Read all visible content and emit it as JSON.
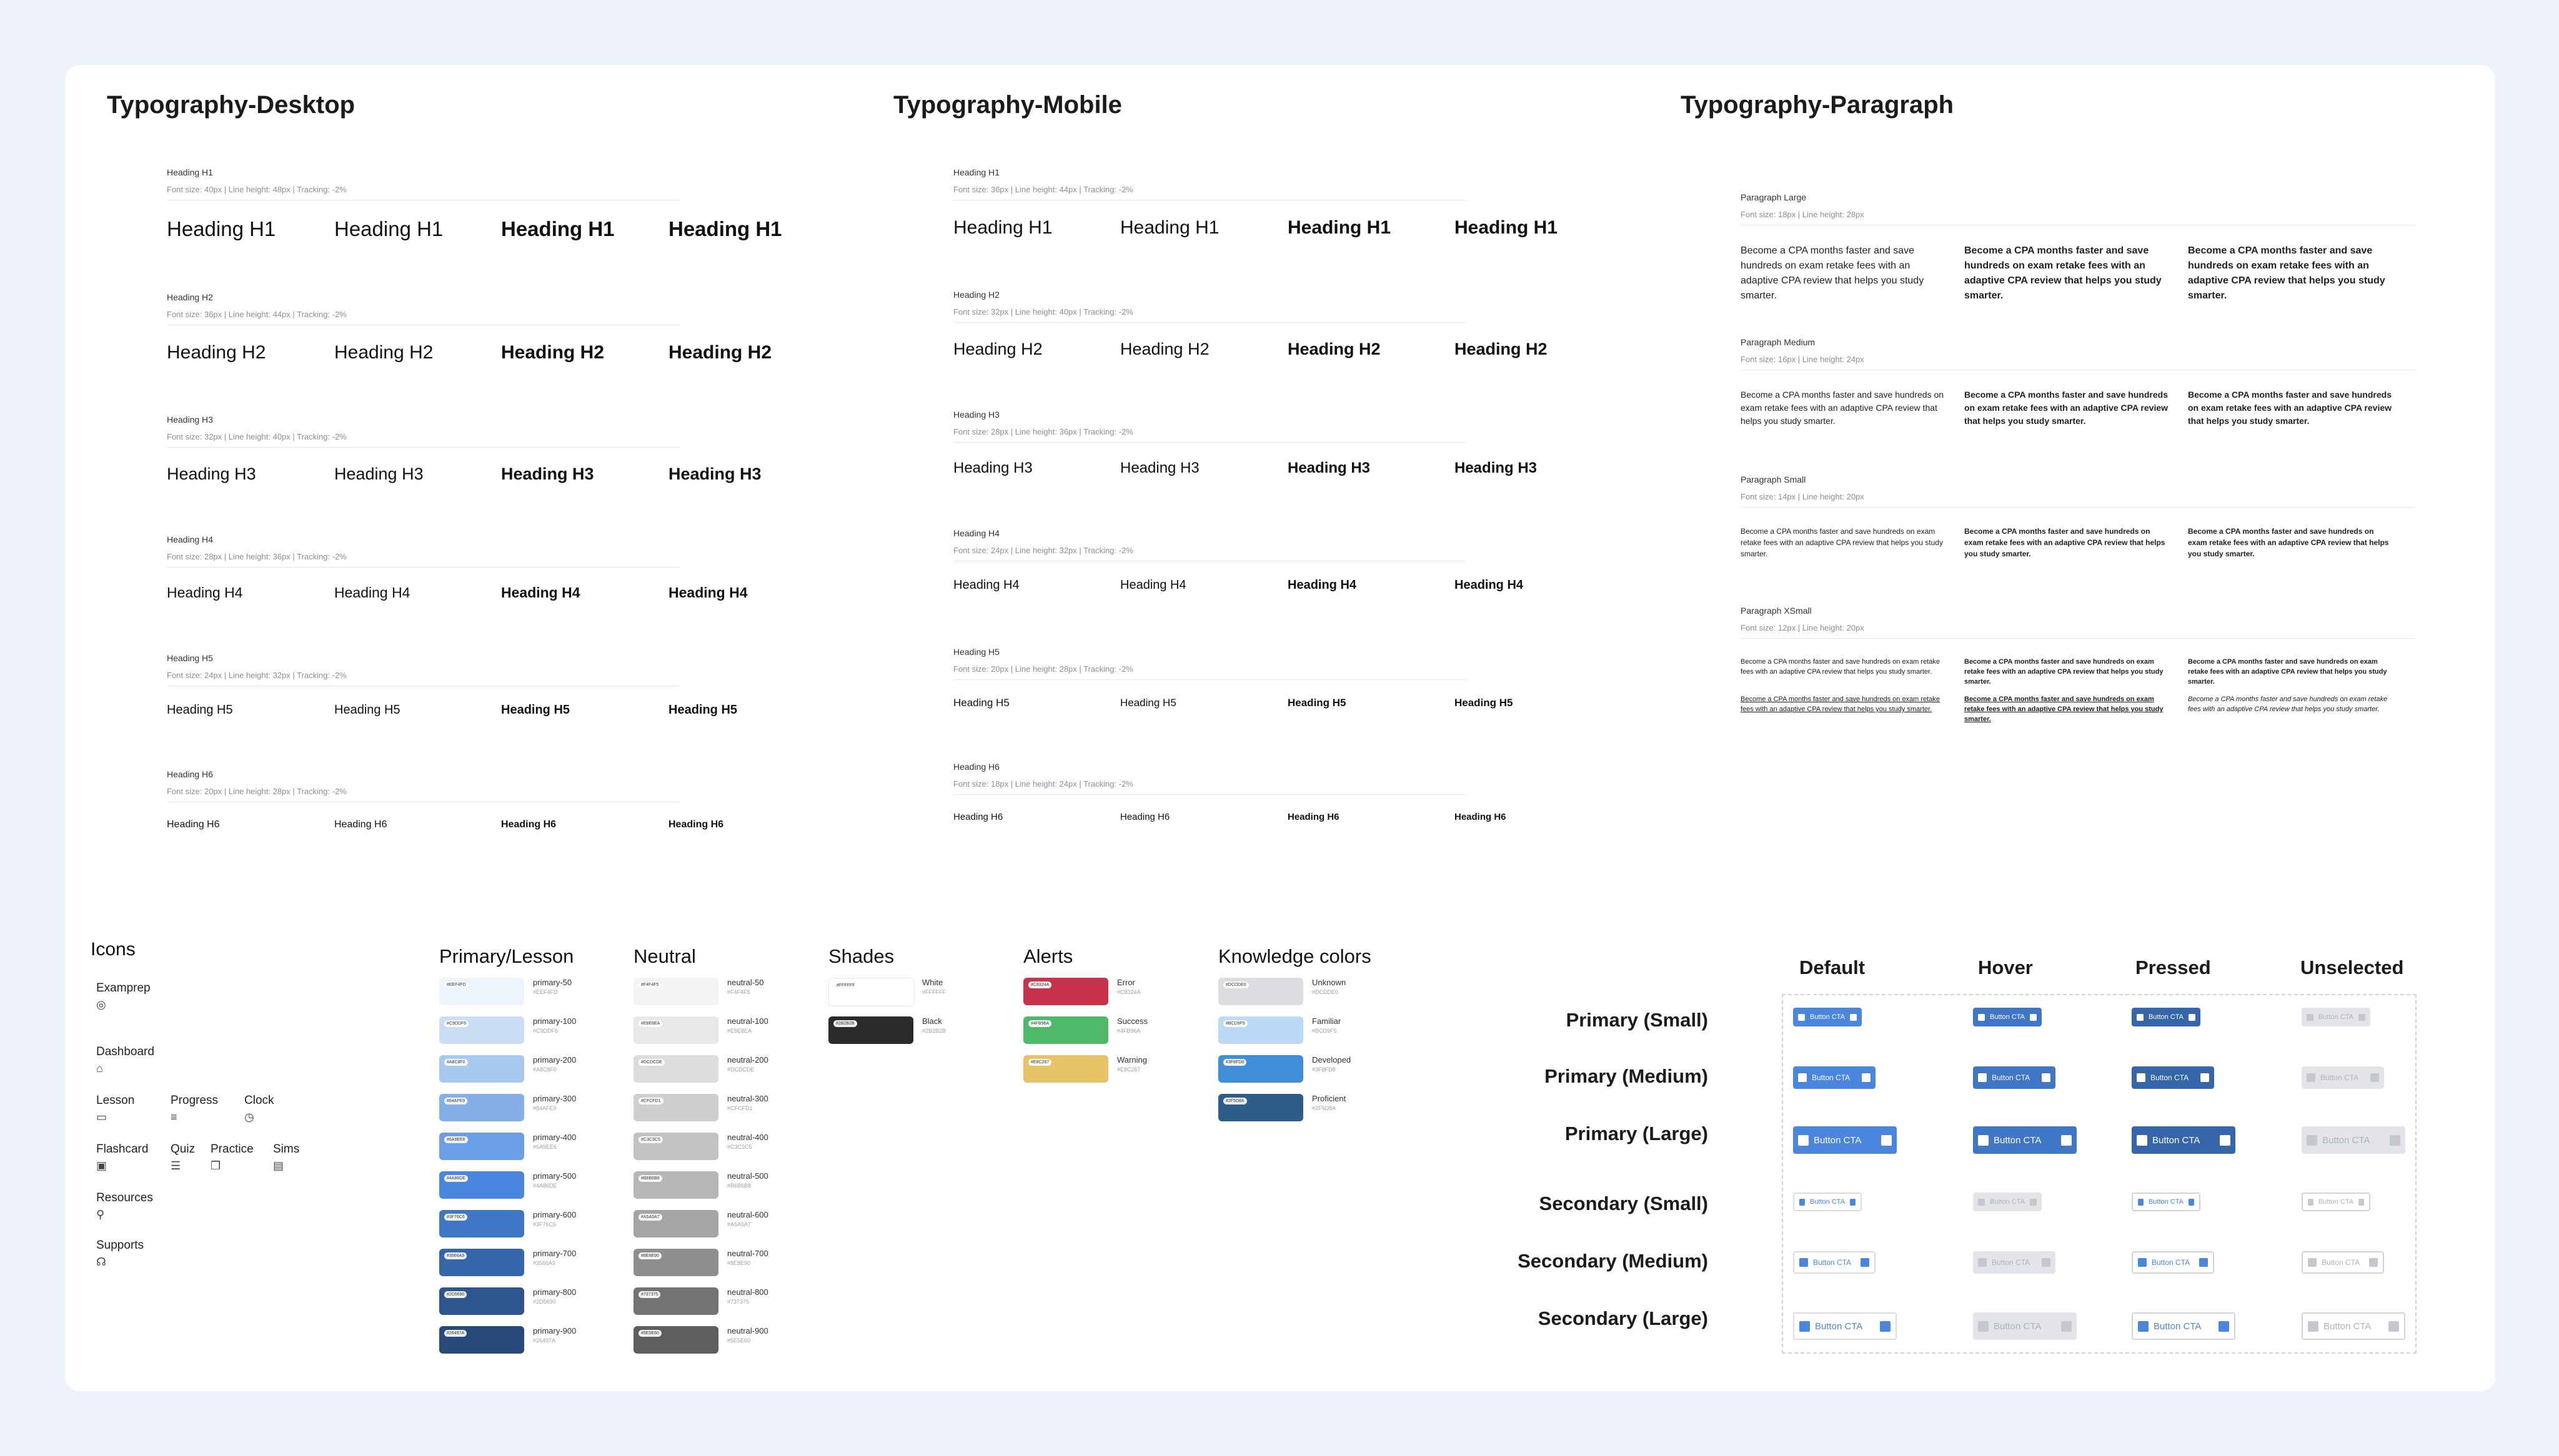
{
  "sections": {
    "typo_desktop": "Typography-Desktop",
    "typo_mobile": "Typography-Mobile",
    "typo_paragraph": "Typography-Paragraph",
    "icons": "Icons",
    "primary": "Primary/Lesson",
    "neutral": "Neutral",
    "shades": "Shades",
    "alerts": "Alerts",
    "knowledge": "Knowledge colors"
  },
  "desktop": [
    {
      "label": "Heading H1",
      "meta": "Font size: 40px | Line height: 48px | Tracking: -2%",
      "sample": "Heading H1"
    },
    {
      "label": "Heading H2",
      "meta": "Font size: 36px | Line height: 44px | Tracking: -2%",
      "sample": "Heading H2"
    },
    {
      "label": "Heading H3",
      "meta": "Font size: 32px | Line height: 40px | Tracking: -2%",
      "sample": "Heading H3"
    },
    {
      "label": "Heading H4",
      "meta": "Font size: 28px | Line height: 36px | Tracking: -2%",
      "sample": "Heading H4"
    },
    {
      "label": "Heading H5",
      "meta": "Font size: 24px | Line height: 32px | Tracking: -2%",
      "sample": "Heading H5"
    },
    {
      "label": "Heading H6",
      "meta": "Font size: 20px | Line height: 28px | Tracking: -2%",
      "sample": "Heading H6"
    }
  ],
  "mobile": [
    {
      "label": "Heading H1",
      "meta": "Font size: 36px | Line height: 44px | Tracking: -2%",
      "sample": "Heading H1"
    },
    {
      "label": "Heading H2",
      "meta": "Font size: 32px | Line height: 40px | Tracking: -2%",
      "sample": "Heading H2"
    },
    {
      "label": "Heading H3",
      "meta": "Font size: 28px | Line height: 36px | Tracking: -2%",
      "sample": "Heading H3"
    },
    {
      "label": "Heading H4",
      "meta": "Font size: 24px | Line height: 32px | Tracking: -2%",
      "sample": "Heading H4"
    },
    {
      "label": "Heading H5",
      "meta": "Font size: 20px | Line height: 28px | Tracking: -2%",
      "sample": "Heading H5"
    },
    {
      "label": "Heading H6",
      "meta": "Font size: 18px | Line height: 24px | Tracking: -2%",
      "sample": "Heading H6"
    }
  ],
  "paragraphs": [
    {
      "label": "Paragraph Large",
      "meta": "Font size: 18px | Line height: 28px",
      "text": "Become a CPA months faster and save hundreds on exam retake fees with an adaptive CPA review that helps you study smarter."
    },
    {
      "label": "Paragraph Medium",
      "meta": "Font size: 16px | Line height: 24px",
      "text": "Become a CPA months faster and save hundreds on exam retake fees with an adaptive CPA review that helps you study smarter."
    },
    {
      "label": "Paragraph Small",
      "meta": "Font size: 14px | Line height: 20px",
      "text": "Become a CPA months faster and save hundreds on exam retake fees with an adaptive CPA review that helps you study smarter."
    },
    {
      "label": "Paragraph XSmall",
      "meta": "Font size: 12px | Line height: 20px",
      "text": "Become a CPA months faster and save hundreds on exam retake fees with an adaptive CPA review that helps you study smarter."
    }
  ],
  "icons": [
    {
      "label": "Examprep",
      "icon": "target-icon",
      "glyph": "◎"
    },
    {
      "label": "Dashboard",
      "icon": "home-icon",
      "glyph": "⌂"
    },
    {
      "label": "Lesson",
      "icon": "monitor-icon",
      "glyph": "▭"
    },
    {
      "label": "Progress",
      "icon": "bars-icon",
      "glyph": "≡"
    },
    {
      "label": "Clock",
      "icon": "clock-icon",
      "glyph": "◷"
    },
    {
      "label": "Flashcard",
      "icon": "card-icon",
      "glyph": "▣"
    },
    {
      "label": "Quiz",
      "icon": "checklist-icon",
      "glyph": "☰"
    },
    {
      "label": "Practice",
      "icon": "copy-icon",
      "glyph": "❐"
    },
    {
      "label": "Sims",
      "icon": "screen-icon",
      "glyph": "▤"
    },
    {
      "label": "Resources",
      "icon": "pin-icon",
      "glyph": "⚲"
    },
    {
      "label": "Supports",
      "icon": "headset-icon",
      "glyph": "☊"
    }
  ],
  "primary_colors": [
    {
      "name": "primary-50",
      "color": "#eef4fd",
      "hex": "#EEF4FD"
    },
    {
      "name": "primary-100",
      "color": "#c9ddf6",
      "hex": "#C9DDF6"
    },
    {
      "name": "primary-200",
      "color": "#a8c8f0",
      "hex": "#A8C8F0"
    },
    {
      "name": "primary-300",
      "color": "#84afe9",
      "hex": "#84AFE9"
    },
    {
      "name": "primary-400",
      "color": "#6a9ee6",
      "hex": "#6A9EE6"
    },
    {
      "name": "primary-500",
      "color": "#4a86de",
      "hex": "#4A86DE"
    },
    {
      "name": "primary-600",
      "color": "#3f76c6",
      "hex": "#3F76C6"
    },
    {
      "name": "primary-700",
      "color": "#3566a9",
      "hex": "#3566A9"
    },
    {
      "name": "primary-800",
      "color": "#2d5690",
      "hex": "#2D5690"
    },
    {
      "name": "primary-900",
      "color": "#26497a",
      "hex": "#26497A"
    }
  ],
  "neutral_colors": [
    {
      "name": "neutral-50",
      "color": "#f4f4f5",
      "hex": "#F4F4F5"
    },
    {
      "name": "neutral-100",
      "color": "#e8e8ea",
      "hex": "#E8E8EA"
    },
    {
      "name": "neutral-200",
      "color": "#dcdcde",
      "hex": "#DCDCDE"
    },
    {
      "name": "neutral-300",
      "color": "#cfcfd1",
      "hex": "#CFCFD1"
    },
    {
      "name": "neutral-400",
      "color": "#c3c3c5",
      "hex": "#C3C3C5"
    },
    {
      "name": "neutral-500",
      "color": "#b6b6b8",
      "hex": "#B6B6B8"
    },
    {
      "name": "neutral-600",
      "color": "#a5a5a7",
      "hex": "#A5A5A7"
    },
    {
      "name": "neutral-700",
      "color": "#8e8e90",
      "hex": "#8E8E90"
    },
    {
      "name": "neutral-800",
      "color": "#737375",
      "hex": "#737375"
    },
    {
      "name": "neutral-900",
      "color": "#5e5e60",
      "hex": "#5E5E60"
    }
  ],
  "shades_colors": [
    {
      "name": "White",
      "color": "#ffffff",
      "hex": "#FFFFFF"
    },
    {
      "name": "Black",
      "color": "#2b2b2b",
      "hex": "#2B2B2B"
    }
  ],
  "alert_colors": [
    {
      "name": "Error",
      "color": "#c8324a",
      "hex": "#C8324A"
    },
    {
      "name": "Success",
      "color": "#4fb96a",
      "hex": "#4FB96A"
    },
    {
      "name": "Warning",
      "color": "#e8c267",
      "hex": "#E8C267"
    }
  ],
  "knowledge_colors": [
    {
      "name": "Unknown",
      "color": "#dcdde0",
      "hex": "#DCDDE0"
    },
    {
      "name": "Familiar",
      "color": "#bcd9f5",
      "hex": "#BCD9F5"
    },
    {
      "name": "Developed",
      "color": "#3f8fd8",
      "hex": "#3F8FD8"
    },
    {
      "name": "Proficient",
      "color": "#2f5d8a",
      "hex": "#2F5D8A"
    }
  ],
  "buttons": {
    "columns": [
      "Default",
      "Hover",
      "Pressed",
      "Unselected"
    ],
    "rows": [
      "Primary (Small)",
      "Primary (Medium)",
      "Primary (Large)",
      "Secondary (Small)",
      "Secondary (Medium)",
      "Secondary (Large)"
    ],
    "label": "Button CTA",
    "primary_default": "#4a86de",
    "primary_hover": "#3f76c6",
    "primary_pressed": "#3566a9",
    "unselected": "#e2e4ea"
  }
}
